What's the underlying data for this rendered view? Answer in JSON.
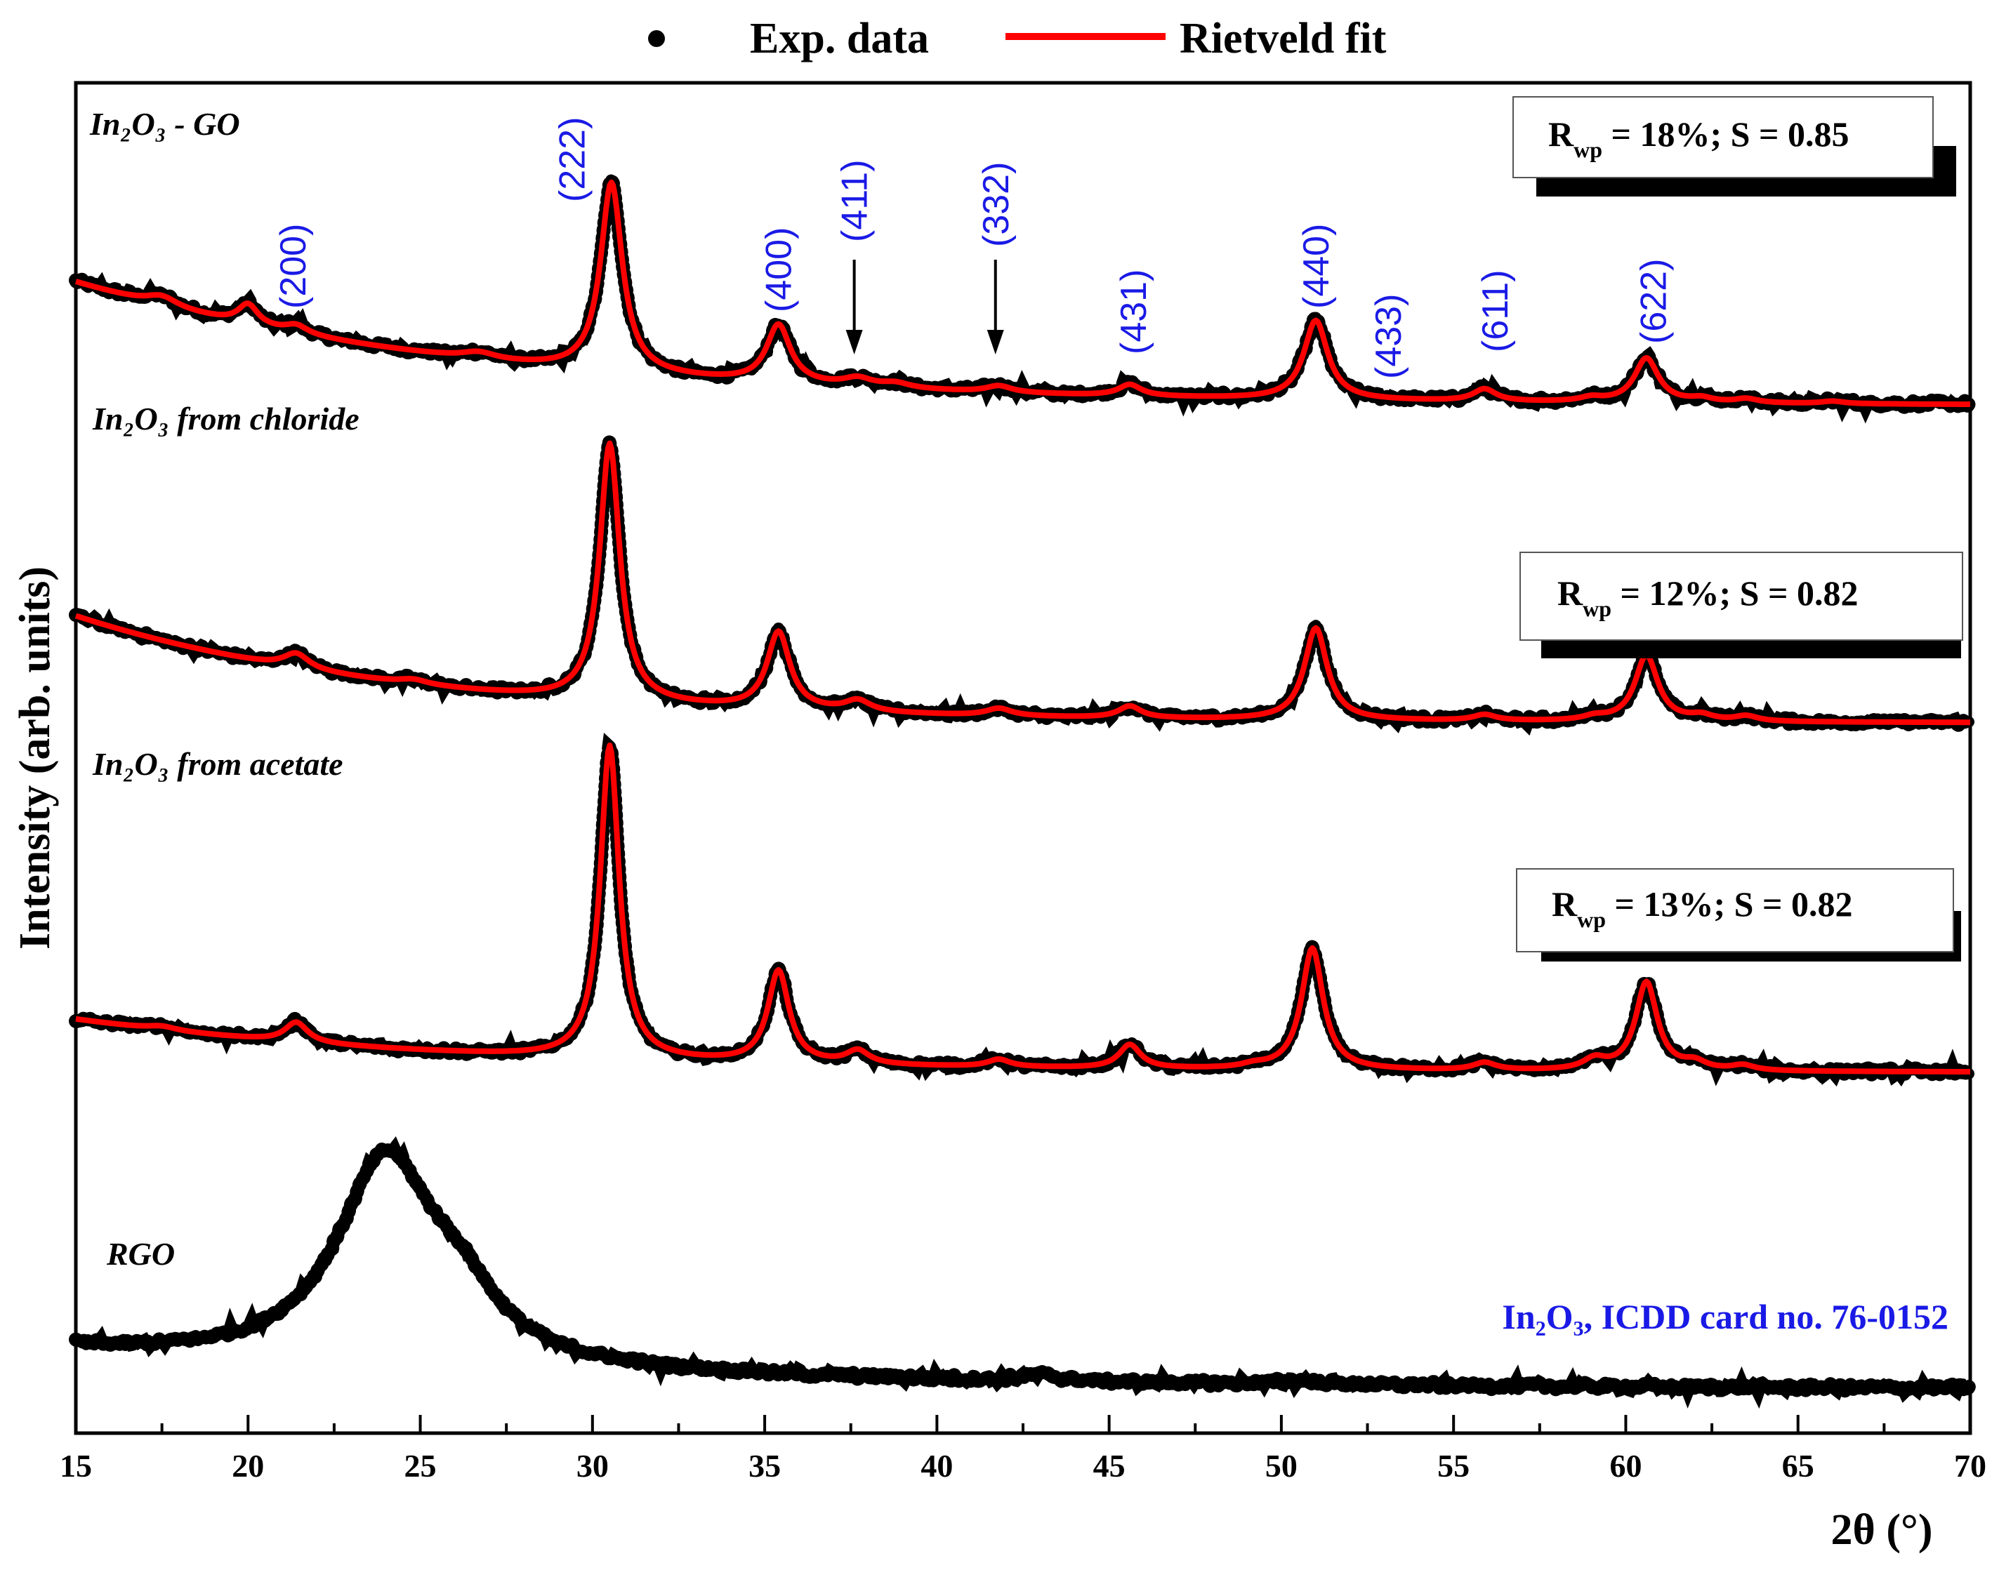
{
  "colors": {
    "exp": "#000000",
    "fit": "#ff0000",
    "hkl": "#1a1ae6",
    "axis": "#000000"
  },
  "chart_data": {
    "type": "line",
    "xlabel": "2θ (°)",
    "ylabel": "Intensity (arb. units)",
    "xlim": [
      15,
      70
    ],
    "xticks": [
      15,
      20,
      25,
      30,
      35,
      40,
      45,
      50,
      55,
      60,
      65,
      70
    ],
    "legend": {
      "placement": "top-center",
      "items": [
        "Exp. data",
        "Rietveld fit"
      ]
    },
    "reference": {
      "formula": "In₂O₃",
      "suffix": ", ICDD card no. 76-0152"
    },
    "series": [
      {
        "name": "In2O3 - GO",
        "label": "In₂O₃ - GO",
        "rfactor": "R",
        "rsub": "wp",
        "rtext": " = 18%; S = 0.85",
        "has_fit": true,
        "baseline_offset": 0.0,
        "background": {
          "start": 1.53,
          "end": 0.0,
          "decay": 0.085
        },
        "peaks": [
          [
            17.5,
            0.12,
            0.55
          ],
          [
            20.0,
            0.25,
            0.35
          ],
          [
            21.4,
            0.1,
            0.4
          ],
          [
            26.7,
            0.08,
            0.6
          ],
          [
            30.55,
            2.35,
            0.38
          ],
          [
            35.4,
            0.72,
            0.42
          ],
          [
            37.7,
            0.1,
            0.5
          ],
          [
            38.8,
            0.06,
            0.5
          ],
          [
            41.8,
            0.08,
            0.45
          ],
          [
            45.6,
            0.14,
            0.4
          ],
          [
            51.0,
            0.98,
            0.42
          ],
          [
            55.9,
            0.15,
            0.4
          ],
          [
            59.0,
            0.05,
            0.4
          ],
          [
            60.6,
            0.55,
            0.42
          ],
          [
            62.2,
            0.05,
            0.4
          ],
          [
            63.5,
            0.05,
            0.4
          ],
          [
            66.0,
            0.03,
            0.4
          ]
        ]
      },
      {
        "name": "In2O3 from chloride",
        "label": "In₂O₃ from chloride",
        "rfactor": "R",
        "rsub": "wp",
        "rtext": " = 12%; S = 0.82",
        "has_fit": true,
        "baseline_offset": 0.0,
        "background": {
          "start": 1.45,
          "end": 0.0,
          "decay": 0.105
        },
        "peaks": [
          [
            21.4,
            0.2,
            0.45
          ],
          [
            24.8,
            0.06,
            0.5
          ],
          [
            30.5,
            3.5,
            0.35
          ],
          [
            35.4,
            1.05,
            0.4
          ],
          [
            37.7,
            0.15,
            0.45
          ],
          [
            41.8,
            0.1,
            0.45
          ],
          [
            45.6,
            0.16,
            0.4
          ],
          [
            51.0,
            1.25,
            0.4
          ],
          [
            55.9,
            0.08,
            0.4
          ],
          [
            59.1,
            0.05,
            0.4
          ],
          [
            60.6,
            0.9,
            0.4
          ],
          [
            62.2,
            0.07,
            0.4
          ],
          [
            63.5,
            0.07,
            0.4
          ]
        ]
      },
      {
        "name": "In2O3 from acetate",
        "label": "In₂O₃ from acetate",
        "rfactor": "R",
        "rsub": "wp",
        "rtext": " = 13%; S = 0.82",
        "has_fit": true,
        "baseline_offset": 0.0,
        "background": {
          "start": 0.72,
          "end": 0.0,
          "decay": 0.09
        },
        "peaks": [
          [
            17.5,
            0.05,
            0.5
          ],
          [
            21.4,
            0.27,
            0.4
          ],
          [
            30.5,
            4.25,
            0.33
          ],
          [
            35.4,
            1.25,
            0.37
          ],
          [
            37.7,
            0.18,
            0.4
          ],
          [
            41.8,
            0.1,
            0.4
          ],
          [
            45.6,
            0.32,
            0.38
          ],
          [
            49.2,
            0.04,
            0.4
          ],
          [
            50.9,
            1.65,
            0.38
          ],
          [
            55.9,
            0.1,
            0.4
          ],
          [
            59.1,
            0.14,
            0.4
          ],
          [
            60.6,
            1.2,
            0.38
          ],
          [
            62.0,
            0.1,
            0.4
          ],
          [
            63.4,
            0.07,
            0.4
          ]
        ]
      },
      {
        "name": "RGO",
        "label": "RGO",
        "has_fit": false,
        "baseline_offset": 0.0,
        "background": {
          "start": 0.5,
          "end": 0.0,
          "decay": 0.06
        },
        "peaks": [
          [
            24.0,
            2.65,
            1.75
          ],
          [
            26.2,
            0.6,
            1.3
          ],
          [
            43.0,
            0.08,
            0.6
          ],
          [
            50.5,
            0.04,
            0.8
          ]
        ]
      }
    ],
    "hkl_labels": [
      {
        "hkl": "(200)",
        "x": 21.3
      },
      {
        "hkl": "(222)",
        "x": 29.4
      },
      {
        "hkl": "(400)",
        "x": 35.4
      },
      {
        "hkl": "(411)",
        "x": 37.6
      },
      {
        "hkl": "(332)",
        "x": 41.7
      },
      {
        "hkl": "(431)",
        "x": 45.7
      },
      {
        "hkl": "(440)",
        "x": 51.0
      },
      {
        "hkl": "(433)",
        "x": 53.1
      },
      {
        "hkl": "(611)",
        "x": 56.2
      },
      {
        "hkl": "(622)",
        "x": 60.8
      }
    ],
    "arrows_at": [
      37.6,
      41.7
    ]
  }
}
